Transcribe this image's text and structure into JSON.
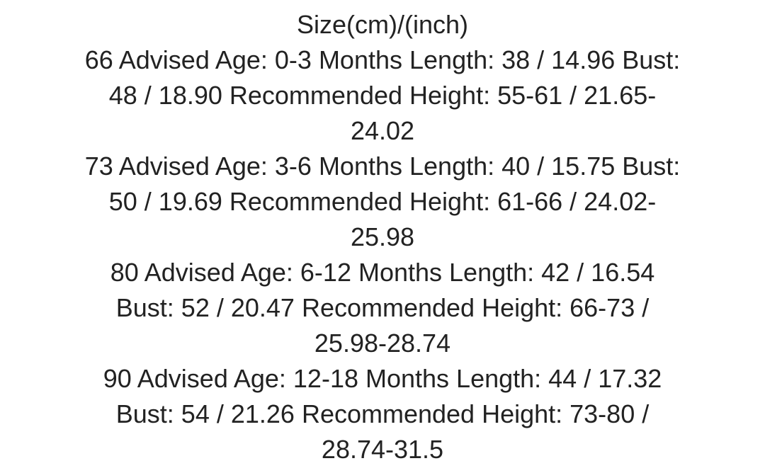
{
  "title": "Size(cm)/(inch)",
  "entries": [
    {
      "lines": [
        "66 Advised Age: 0-3 Months Length: 38 / 14.96 Bust:",
        "48 / 18.90 Recommended Height: 55-61 / 21.65-",
        "24.02"
      ]
    },
    {
      "lines": [
        "73 Advised Age: 3-6 Months Length: 40 / 15.75 Bust:",
        "50 / 19.69 Recommended Height: 61-66 / 24.02-",
        "25.98"
      ]
    },
    {
      "lines": [
        "80 Advised Age: 6-12 Months Length: 42 / 16.54",
        "Bust: 52 / 20.47 Recommended Height: 66-73 /",
        "25.98-28.74"
      ]
    },
    {
      "lines": [
        "90 Advised Age: 12-18 Months Length: 44 / 17.32",
        "Bust: 54 / 21.26 Recommended Height: 73-80 /",
        "28.74-31.5"
      ]
    }
  ]
}
